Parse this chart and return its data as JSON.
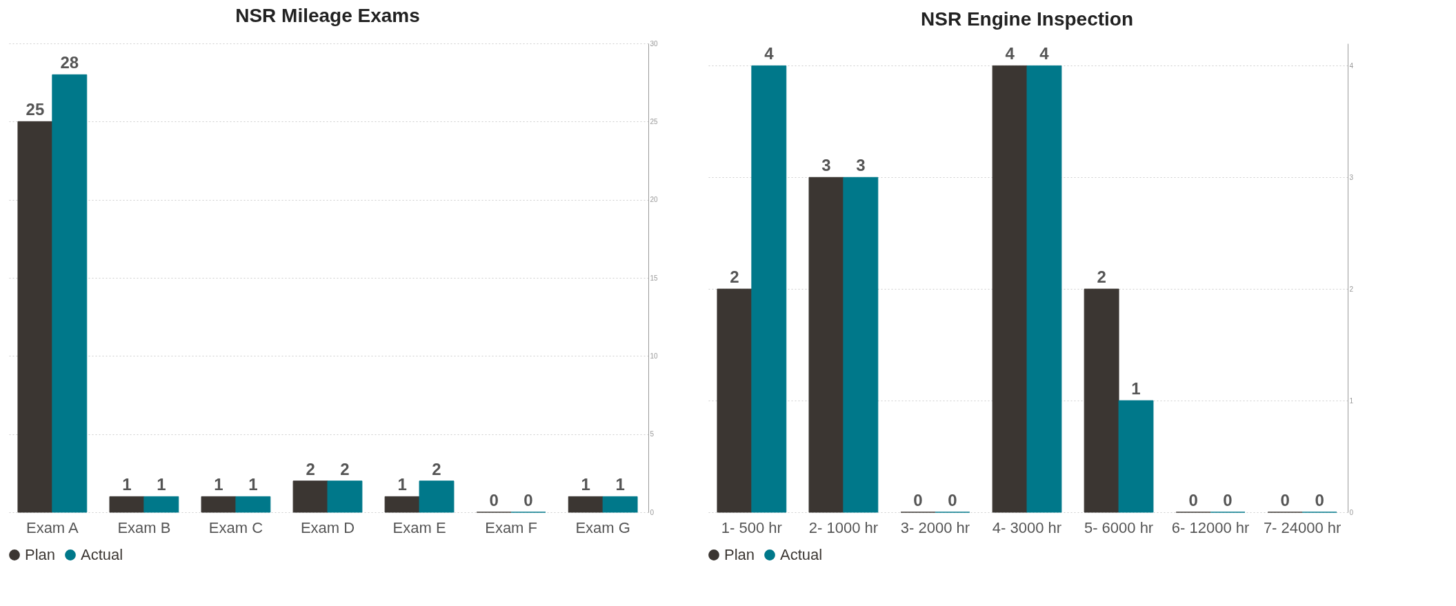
{
  "chart_data": [
    {
      "type": "bar",
      "title": "NSR Mileage Exams",
      "categories": [
        "Exam A",
        "Exam B",
        "Exam C",
        "Exam D",
        "Exam E",
        "Exam F",
        "Exam G"
      ],
      "series": [
        {
          "name": "Plan",
          "color": "#3b3632",
          "values": [
            25,
            1,
            1,
            2,
            1,
            0,
            1
          ]
        },
        {
          "name": "Actual",
          "color": "#00788a",
          "values": [
            28,
            1,
            1,
            2,
            2,
            0,
            1
          ]
        }
      ],
      "ylim": [
        0,
        30
      ],
      "yticks": [
        0,
        5,
        10,
        15,
        20,
        25,
        30
      ],
      "grid": "y",
      "legend": "bottom",
      "data_labels": true
    },
    {
      "type": "bar",
      "title": "NSR Engine Inspection",
      "categories": [
        "1- 500 hr",
        "2- 1000 hr",
        "3- 2000 hr",
        "4- 3000 hr",
        "5- 6000 hr",
        "6- 12000 hr",
        "7- 24000 hr"
      ],
      "series": [
        {
          "name": "Plan",
          "color": "#3b3632",
          "values": [
            2,
            3,
            0,
            4,
            2,
            0,
            0
          ]
        },
        {
          "name": "Actual",
          "color": "#00788a",
          "values": [
            4,
            3,
            0,
            4,
            1,
            0,
            0
          ]
        }
      ],
      "ylim": [
        0,
        4.2
      ],
      "yticks": [
        0,
        1,
        2,
        3,
        4
      ],
      "grid": "y",
      "legend": "bottom",
      "data_labels": true
    }
  ]
}
